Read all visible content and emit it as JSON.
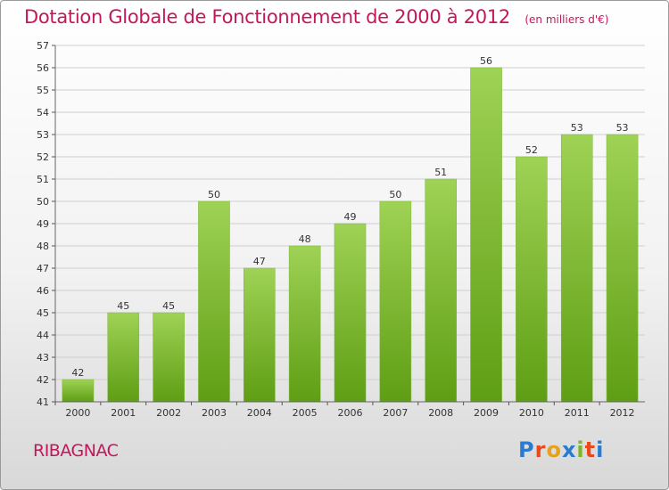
{
  "title": "Dotation Globale de Fonctionnement de 2000 à 2012",
  "unit": "(en milliers d'€)",
  "commune": "RIBAGNAC",
  "logo": {
    "text": "Proxiti",
    "letters": [
      "P",
      "r",
      "o",
      "x",
      "i",
      "t",
      "i"
    ],
    "colors": [
      "#2a7bd0",
      "#e8491d",
      "#e8a11d",
      "#2a7bd0",
      "#7cb52a",
      "#e8491d",
      "#2a7bd0"
    ]
  },
  "colors": {
    "title": "#c2185b",
    "bar_top": "#9fd255",
    "bar_bottom": "#5e9e14",
    "grid": "#cfcfcf"
  },
  "chart_data": {
    "type": "bar",
    "categories": [
      "2000",
      "2001",
      "2002",
      "2003",
      "2004",
      "2005",
      "2006",
      "2007",
      "2008",
      "2009",
      "2010",
      "2011",
      "2012"
    ],
    "values": [
      42,
      45,
      45,
      50,
      47,
      48,
      49,
      50,
      51,
      56,
      52,
      53,
      53
    ],
    "data_labels": [
      "42",
      "45",
      "45",
      "50",
      "47",
      "48",
      "49",
      "50",
      "51",
      "56",
      "52",
      "53",
      "53"
    ],
    "title": "Dotation Globale de Fonctionnement de 2000 à 2012",
    "xlabel": "",
    "ylabel": "",
    "ylim": [
      41,
      57
    ],
    "yticks": [
      41,
      42,
      43,
      44,
      45,
      46,
      47,
      48,
      49,
      50,
      51,
      52,
      53,
      54,
      55,
      56,
      57
    ],
    "grid": "horizontal",
    "legend": "none"
  }
}
